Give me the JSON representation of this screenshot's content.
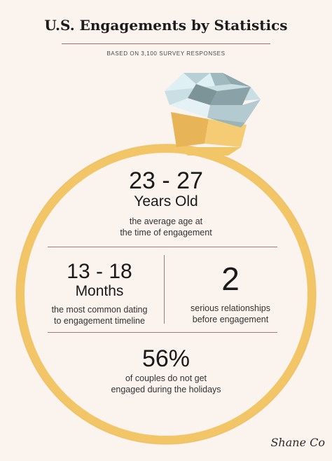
{
  "header": {
    "title": "U.S. Engagements by Statistics",
    "subtitle": "BASED ON 3,100 SURVEY RESPONSES"
  },
  "stats": {
    "age": {
      "value": "23 - 27",
      "unit": "Years Old",
      "desc_line1": "the average age at",
      "desc_line2": "the time of engagement"
    },
    "dating": {
      "value": "13 - 18",
      "unit": "Months",
      "desc_line1": "the most common dating",
      "desc_line2": "to engagement timeline"
    },
    "relationships": {
      "value": "2",
      "desc_line1": "serious relationships",
      "desc_line2": "before engagement"
    },
    "holidays": {
      "value": "56%",
      "desc_line1": "of couples do not get",
      "desc_line2": "engaged during the holidays"
    }
  },
  "logo": {
    "text": "Shane Co"
  },
  "colors": {
    "background": "#fbf3ee",
    "ring_gold": "#f2c567",
    "ring_gold_dark": "#e1b255",
    "diamond_light": "#dff0f4",
    "diamond_mid": "#a9c3c9",
    "diamond_dark": "#7c9398",
    "divider": "#a07a7c"
  },
  "icons": [
    "ring-icon",
    "diamond-icon"
  ]
}
